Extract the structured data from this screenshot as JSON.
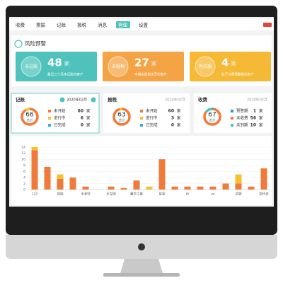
{
  "nav": {
    "items": [
      "收费",
      "票据",
      "记账",
      "报税",
      "消息",
      "管理",
      "设置"
    ],
    "active": 5
  },
  "unit": "家",
  "risk": {
    "title": "风险预警",
    "cards": [
      {
        "label": "未记账",
        "count": 48,
        "desc": "最近三个月未记账的客户",
        "color": "#4fc3bb"
      },
      {
        "label": "未报税",
        "count": 27,
        "desc": "本期应报税未开的客户",
        "color": "#f4a444"
      },
      {
        "label": "有欠款",
        "count": 4,
        "desc": "处于欠费预警期的客户",
        "color": "#f6b935"
      }
    ]
  },
  "panels": [
    {
      "title": "记账",
      "period": "2020年02月",
      "total": 66,
      "total_label": "总计",
      "arrows": true,
      "items": [
        {
          "name": "未开始",
          "count": 60,
          "color": "#f07a3a"
        },
        {
          "name": "进行中",
          "count": 6,
          "color": "#f6c02e"
        },
        {
          "name": "已完成",
          "count": 0,
          "color": "#3aaed8"
        }
      ]
    },
    {
      "title": "报税",
      "period": "2020年02月",
      "total": 63,
      "total_label": "总计",
      "arrows": false,
      "items": [
        {
          "name": "未开始",
          "count": 60,
          "color": "#f07a3a"
        },
        {
          "name": "进行中",
          "count": 3,
          "color": "#f6c02e"
        },
        {
          "name": "已完成",
          "count": 0,
          "color": "#3aaed8"
        }
      ]
    },
    {
      "title": "收费",
      "period": "2020年02月",
      "total": 67,
      "total_label": "总计",
      "arrows": false,
      "items": [
        {
          "name": "预警期",
          "count": 1,
          "color": "#3a8fd8"
        },
        {
          "name": "未收费",
          "count": 56,
          "color": "#f07a3a"
        },
        {
          "name": "未到期",
          "count": 10,
          "color": "#4fc3bb"
        }
      ]
    }
  ],
  "chart_data": {
    "type": "bar",
    "stacked": true,
    "categories": [
      "123",
      null,
      "周瑜",
      null,
      "王老师",
      null,
      "王军刚",
      null,
      "董华之童",
      null,
      "星星",
      null,
      "Hi",
      null,
      "yu",
      null,
      "吴聪",
      null,
      "周代表"
    ],
    "series": [
      {
        "color": "#f07a3a",
        "values": [
          13,
          7.5,
          3.5,
          4,
          1,
          0,
          1,
          0.5,
          3,
          0,
          10,
          1,
          1,
          1,
          1,
          2,
          2,
          1,
          7
        ]
      },
      {
        "color": "#f6c02e",
        "values": [
          1,
          0,
          1.5,
          0,
          0,
          0,
          0,
          0,
          0,
          1,
          0,
          0,
          0,
          0,
          0,
          0,
          3,
          0,
          0
        ]
      }
    ],
    "ylim": [
      0,
      14
    ],
    "yticks": [
      0,
      2,
      4,
      6,
      8,
      10,
      12,
      14
    ],
    "grid": true
  }
}
